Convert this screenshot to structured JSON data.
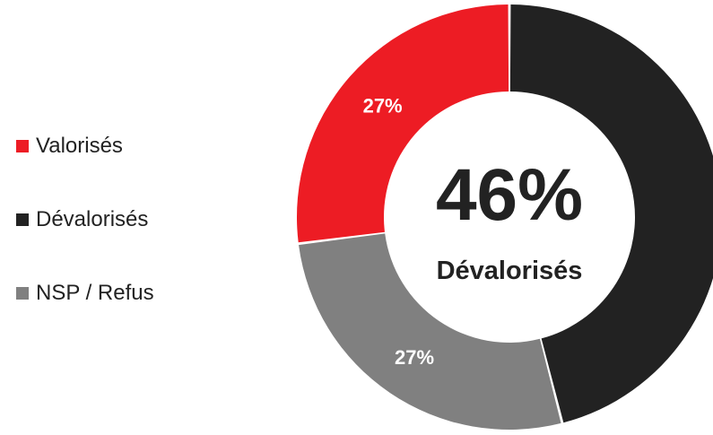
{
  "chart_data": {
    "type": "pie",
    "donut": true,
    "categories": [
      "Valorisés",
      "Dévalorisés",
      "NSP / Refus"
    ],
    "values": [
      27,
      46,
      27
    ],
    "value_labels": [
      "27%",
      "",
      "27%"
    ],
    "colors": [
      "#ed1c24",
      "#222222",
      "#808080"
    ],
    "legend_position": "left",
    "center": {
      "value": "46%",
      "label": "Dévalorisés"
    }
  }
}
